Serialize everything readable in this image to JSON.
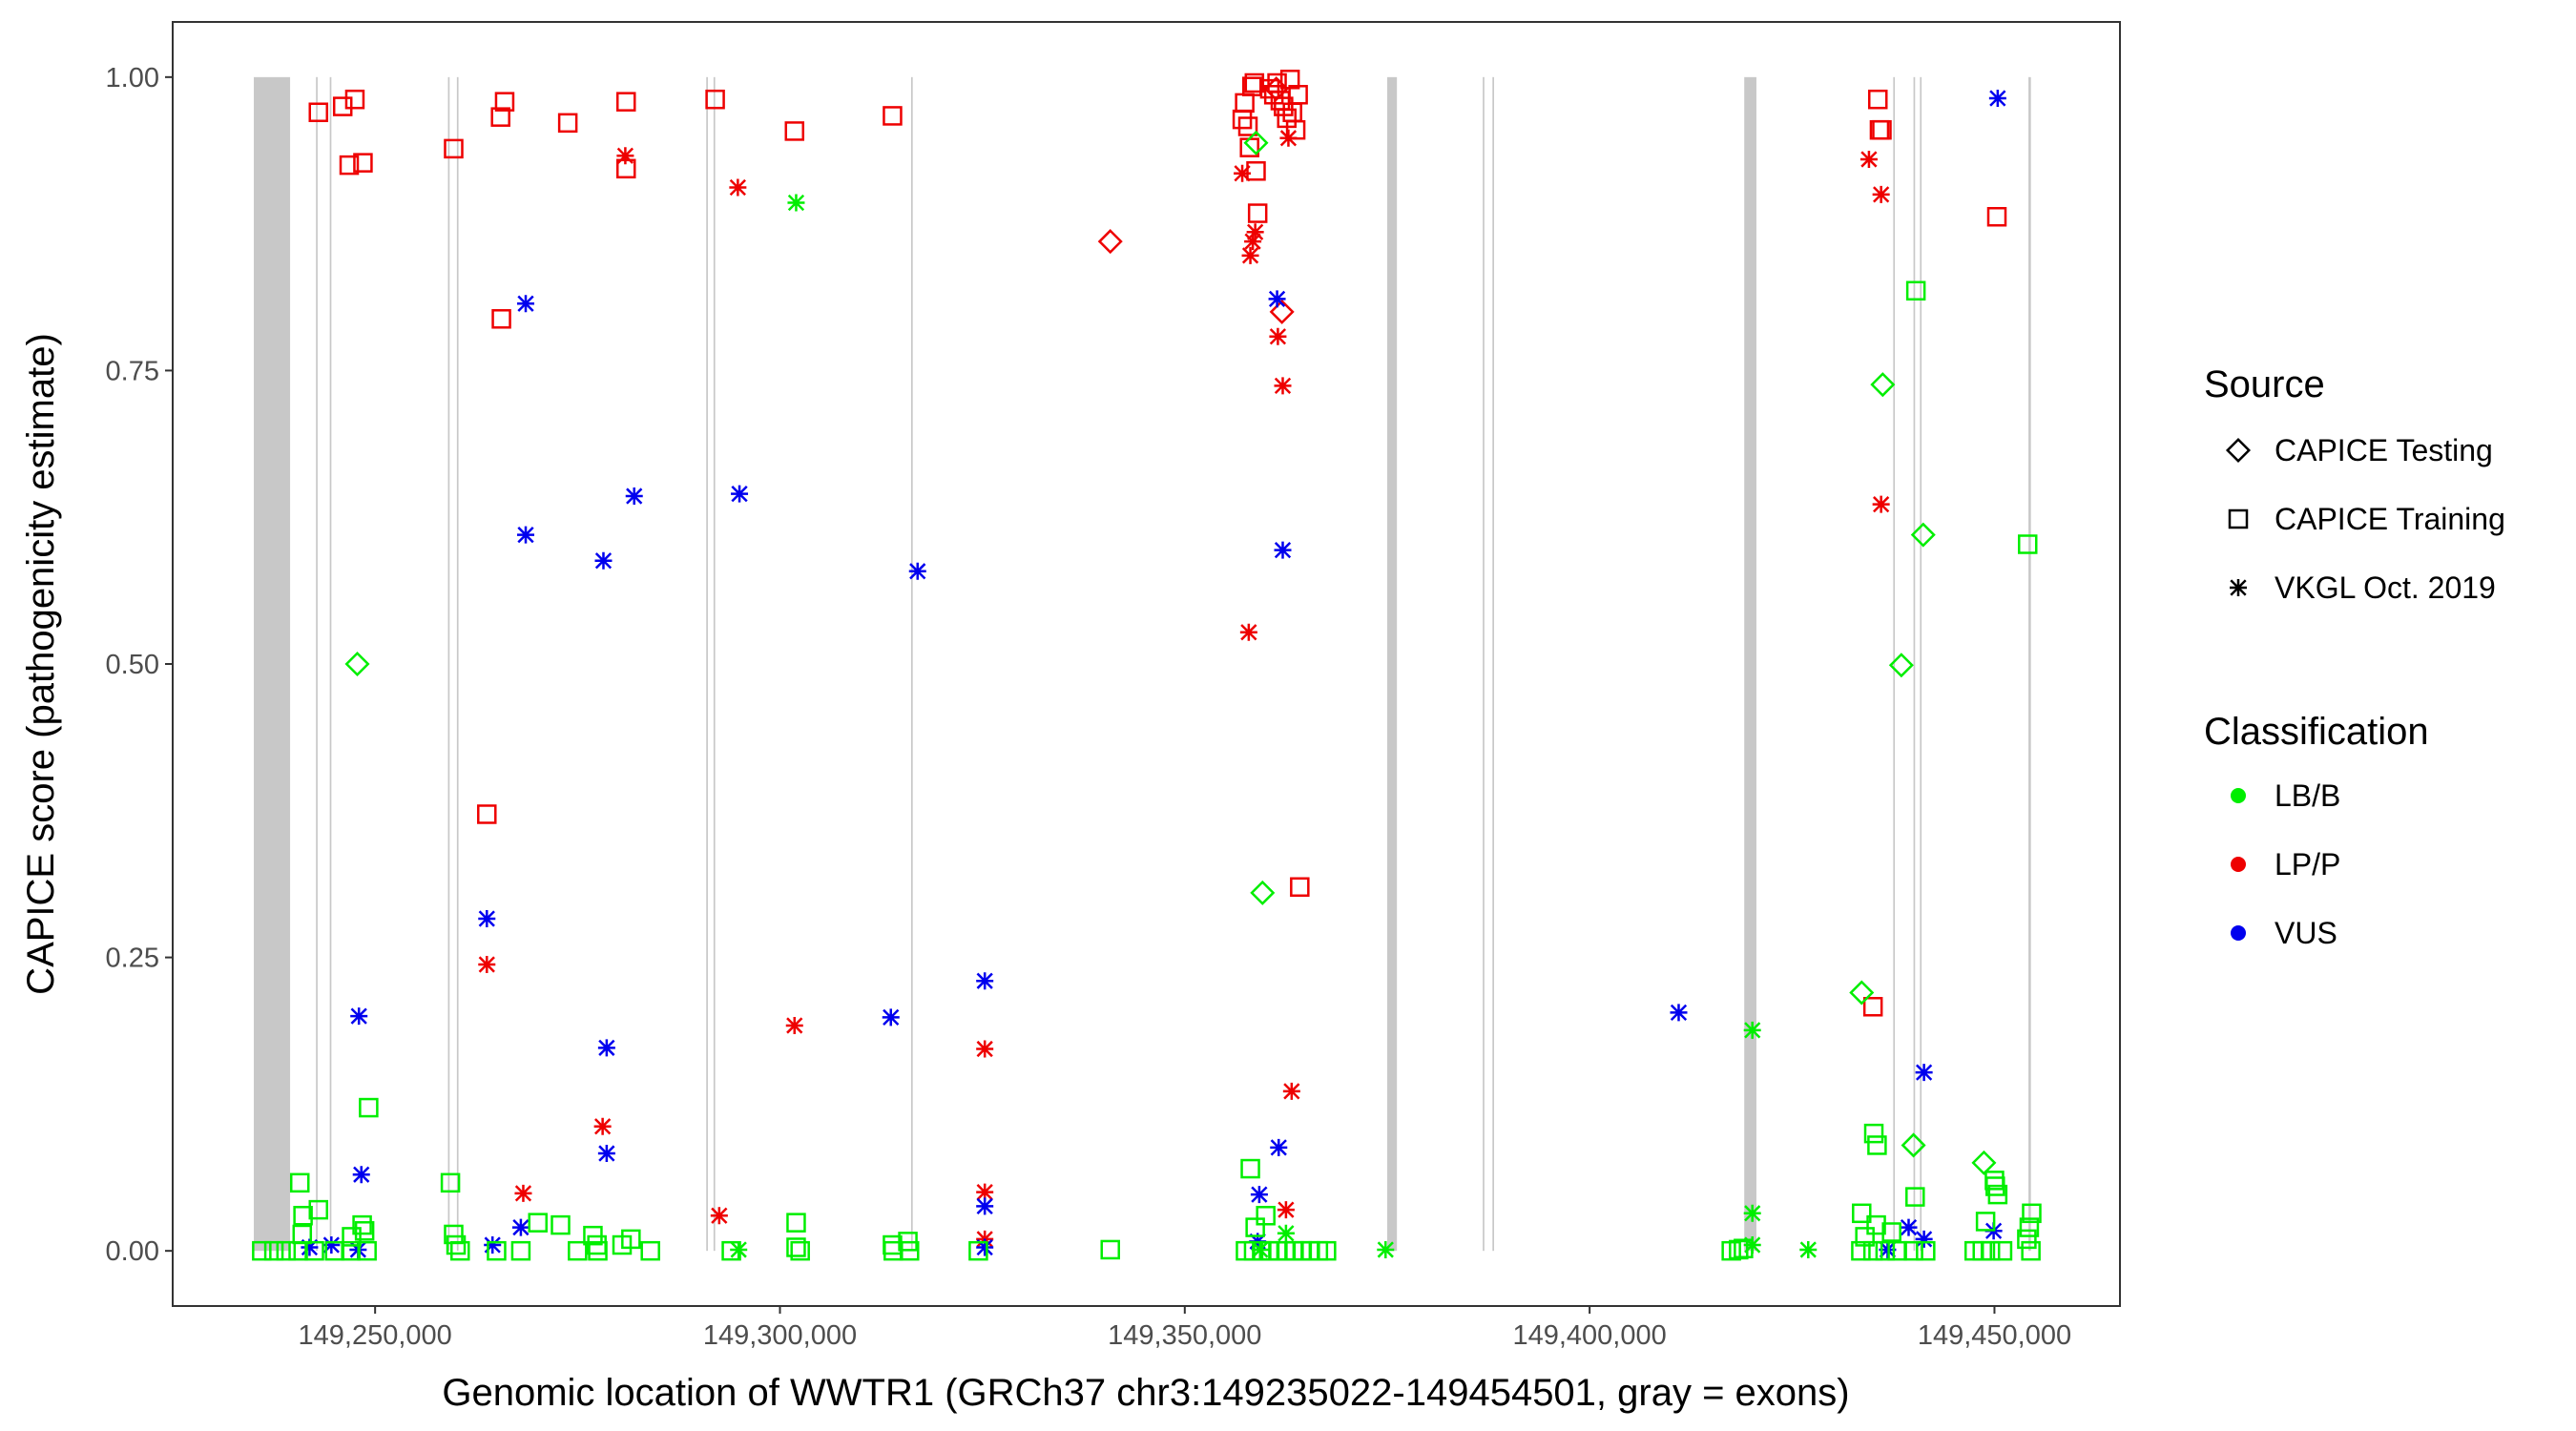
{
  "chart_data": {
    "type": "scatter",
    "title": "",
    "xlabel": "Genomic location of WWTR1 (GRCh37 chr3:149235022-149454501, gray = exons)",
    "ylabel": "CAPICE score (pathogenicity estimate)",
    "xlim": [
      149225000,
      149465500
    ],
    "ylim": [
      -0.047,
      1.047
    ],
    "xticks": [
      149250000,
      149300000,
      149350000,
      149400000,
      149450000
    ],
    "xtick_labels": [
      "149,250,000",
      "149,300,000",
      "149,350,000",
      "149,400,000",
      "149,450,000"
    ],
    "yticks": [
      0,
      0.25,
      0.5,
      0.75,
      1
    ],
    "ytick_labels": [
      "0.00",
      "0.25",
      "0.50",
      "0.75",
      "1.00"
    ],
    "grid": false,
    "exons": [
      [
        149235022,
        149239500
      ],
      [
        149242700,
        149242900
      ],
      [
        149244400,
        149244600
      ],
      [
        149259000,
        149259200
      ],
      [
        149260100,
        149260300
      ],
      [
        149290900,
        149291100
      ],
      [
        149291800,
        149292000
      ],
      [
        149316200,
        149316400
      ],
      [
        149375000,
        149376200
      ],
      [
        149386800,
        149387000
      ],
      [
        149388000,
        149388200
      ],
      [
        149419100,
        149420600
      ],
      [
        149437500,
        149437700
      ],
      [
        149440000,
        149440200
      ],
      [
        149440800,
        149441000
      ],
      [
        149454200,
        149454501
      ]
    ],
    "legend": {
      "position": "right",
      "source_title": "Source",
      "source_items": [
        {
          "label": "CAPICE Testing",
          "shape": "diamond"
        },
        {
          "label": "CAPICE Training",
          "shape": "square"
        },
        {
          "label": "VKGL Oct. 2019",
          "shape": "asterisk"
        }
      ],
      "class_title": "Classification",
      "class_items": [
        {
          "label": "LB/B",
          "color": "#00ee00"
        },
        {
          "label": "LP/P",
          "color": "#ee0000"
        },
        {
          "label": "VUS",
          "color": "#0000ee"
        }
      ]
    },
    "series": [
      {
        "name": "CAPICE Training / LP/P",
        "source": "CAPICE Training",
        "class": "LP/P",
        "shape": "square",
        "color": "#ee0000",
        "points": [
          [
            149243000,
            0.97
          ],
          [
            149246000,
            0.975
          ],
          [
            149247500,
            0.981
          ],
          [
            149246800,
            0.925
          ],
          [
            149248500,
            0.927
          ],
          [
            149259700,
            0.939
          ],
          [
            149265500,
            0.966
          ],
          [
            149266000,
            0.979
          ],
          [
            149273800,
            0.961
          ],
          [
            149281000,
            0.979
          ],
          [
            149281000,
            0.922
          ],
          [
            149292000,
            0.981
          ],
          [
            149301800,
            0.954
          ],
          [
            149313900,
            0.967
          ],
          [
            149263800,
            0.372
          ],
          [
            149265600,
            0.794
          ],
          [
            149357100,
            0.964
          ],
          [
            149357400,
            0.978
          ],
          [
            149357800,
            0.958
          ],
          [
            149358000,
            0.94
          ],
          [
            149358300,
            0.992
          ],
          [
            149358600,
            0.995
          ],
          [
            149358800,
            0.92
          ],
          [
            149359000,
            0.884
          ],
          [
            149360500,
            0.99
          ],
          [
            149361000,
            0.985
          ],
          [
            149361400,
            0.995
          ],
          [
            149361800,
            0.98
          ],
          [
            149362200,
            0.975
          ],
          [
            149362600,
            0.965
          ],
          [
            149363000,
            0.998
          ],
          [
            149363300,
            0.97
          ],
          [
            149363700,
            0.955
          ],
          [
            149364000,
            0.985
          ],
          [
            149364200,
            0.31
          ],
          [
            149435600,
            0.981
          ],
          [
            149435800,
            0.955
          ],
          [
            149436100,
            0.955
          ],
          [
            149435000,
            0.208
          ],
          [
            149450300,
            0.881
          ]
        ]
      },
      {
        "name": "CAPICE Testing / LP/P",
        "source": "CAPICE Testing",
        "class": "LP/P",
        "shape": "diamond",
        "color": "#ee0000",
        "points": [
          [
            149340800,
            0.86
          ],
          [
            149362000,
            0.8
          ],
          [
            149361300,
            0.99
          ]
        ]
      },
      {
        "name": "VKGL Oct. 2019 / LP/P",
        "source": "VKGL Oct. 2019",
        "class": "LP/P",
        "shape": "asterisk",
        "color": "#ee0000",
        "points": [
          [
            149280900,
            0.933
          ],
          [
            149294800,
            0.906
          ],
          [
            149263800,
            0.244
          ],
          [
            149268300,
            0.049
          ],
          [
            149278100,
            0.106
          ],
          [
            149292500,
            0.03
          ],
          [
            149301800,
            0.192
          ],
          [
            149325300,
            0.172
          ],
          [
            149325300,
            0.05
          ],
          [
            149325300,
            0.01
          ],
          [
            149357100,
            0.918
          ],
          [
            149358100,
            0.848
          ],
          [
            149358400,
            0.86
          ],
          [
            149358700,
            0.868
          ],
          [
            149357900,
            0.527
          ],
          [
            149361500,
            0.779
          ],
          [
            149362100,
            0.737
          ],
          [
            149362800,
            0.948
          ],
          [
            149363200,
            0.136
          ],
          [
            149362500,
            0.035
          ],
          [
            149434500,
            0.93
          ],
          [
            149436000,
            0.9
          ],
          [
            149436000,
            0.636
          ]
        ]
      },
      {
        "name": "VKGL Oct. 2019 / VUS",
        "source": "VKGL Oct. 2019",
        "class": "VUS",
        "shape": "asterisk",
        "color": "#0000ee",
        "points": [
          [
            149268600,
            0.807
          ],
          [
            149268600,
            0.61
          ],
          [
            149278200,
            0.588
          ],
          [
            149282000,
            0.643
          ],
          [
            149295000,
            0.645
          ],
          [
            149317000,
            0.579
          ],
          [
            149313700,
            0.199
          ],
          [
            149263800,
            0.283
          ],
          [
            149278600,
            0.173
          ],
          [
            149278600,
            0.083
          ],
          [
            149248000,
            0.2
          ],
          [
            149248300,
            0.065
          ],
          [
            149241900,
            0.003
          ],
          [
            149244600,
            0.005
          ],
          [
            149247900,
            0.001
          ],
          [
            149264500,
            0.005
          ],
          [
            149268000,
            0.02
          ],
          [
            149325300,
            0.23
          ],
          [
            149325300,
            0.038
          ],
          [
            149325300,
            0.003
          ],
          [
            149361400,
            0.811
          ],
          [
            149362100,
            0.597
          ],
          [
            149361600,
            0.088
          ],
          [
            149359200,
            0.048
          ],
          [
            149359000,
            0.008
          ],
          [
            149411000,
            0.203
          ],
          [
            149441300,
            0.152
          ],
          [
            149450400,
            0.982
          ],
          [
            149436800,
            0.001
          ],
          [
            149439400,
            0.02
          ],
          [
            149441300,
            0.01
          ],
          [
            149449900,
            0.017
          ]
        ]
      },
      {
        "name": "CAPICE Training / LB/B",
        "source": "CAPICE Training",
        "class": "LB/B",
        "shape": "square",
        "color": "#00ee00",
        "points": [
          [
            149240700,
            0.058
          ],
          [
            149241100,
            0.03
          ],
          [
            149243000,
            0.035
          ],
          [
            149241000,
            0.014
          ],
          [
            149247100,
            0.012
          ],
          [
            149248400,
            0.022
          ],
          [
            149248700,
            0.017
          ],
          [
            149249200,
            0.122
          ],
          [
            149259300,
            0.058
          ],
          [
            149259700,
            0.014
          ],
          [
            149260000,
            0.005
          ],
          [
            149270100,
            0.024
          ],
          [
            149272900,
            0.022
          ],
          [
            149276900,
            0.013
          ],
          [
            149277400,
            0.005
          ],
          [
            149280500,
            0.005
          ],
          [
            149281600,
            0.01
          ],
          [
            149302000,
            0.024
          ],
          [
            149302000,
            0.003
          ],
          [
            149313900,
            0.005
          ],
          [
            149315800,
            0.008
          ],
          [
            149340800,
            0.001
          ],
          [
            149358100,
            0.07
          ],
          [
            149358700,
            0.02
          ],
          [
            149360000,
            0.03
          ],
          [
            149440300,
            0.818
          ],
          [
            149454100,
            0.602
          ],
          [
            149435100,
            0.1
          ],
          [
            149435500,
            0.09
          ],
          [
            149440200,
            0.046
          ],
          [
            149433600,
            0.032
          ],
          [
            149434000,
            0.012
          ],
          [
            149435400,
            0.022
          ],
          [
            149437300,
            0.016
          ],
          [
            149448900,
            0.025
          ],
          [
            149450100,
            0.055
          ],
          [
            149450400,
            0.048
          ],
          [
            149450000,
            0.06
          ],
          [
            149454600,
            0.032
          ],
          [
            149454300,
            0.02
          ],
          [
            149454000,
            0.01
          ],
          [
            149418400,
            0.001
          ],
          [
            149419000,
            0.002
          ]
        ]
      },
      {
        "name": "CAPICE Testing / LB/B",
        "source": "CAPICE Testing",
        "class": "LB/B",
        "shape": "diamond",
        "color": "#00ee00",
        "points": [
          [
            149247800,
            0.5
          ],
          [
            149358800,
            0.944
          ],
          [
            149359600,
            0.305
          ],
          [
            149436200,
            0.738
          ],
          [
            149441200,
            0.61
          ],
          [
            149438500,
            0.499
          ],
          [
            149433600,
            0.22
          ],
          [
            149440000,
            0.09
          ],
          [
            149448700,
            0.075
          ]
        ]
      },
      {
        "name": "VKGL Oct. 2019 / LB/B",
        "source": "VKGL Oct. 2019",
        "class": "LB/B",
        "shape": "asterisk",
        "color": "#00ee00",
        "points": [
          [
            149302000,
            0.893
          ],
          [
            149420100,
            0.188
          ],
          [
            149420100,
            0.032
          ],
          [
            149420100,
            0.005
          ],
          [
            149427000,
            0.001
          ],
          [
            149374800,
            0.001
          ],
          [
            149294900,
            0.001
          ],
          [
            149359300,
            0.001
          ],
          [
            149362500,
            0.015
          ]
        ]
      },
      {
        "name": "LB/B cluster",
        "source": "mixed",
        "class": "LB/B",
        "shape": "square",
        "color": "#00ee00",
        "points": [
          [
            149236000,
            0.0
          ],
          [
            149237500,
            0.0
          ],
          [
            149239000,
            0.0
          ],
          [
            149240500,
            0.0
          ],
          [
            149242500,
            0.0
          ],
          [
            149245000,
            0.0
          ],
          [
            149247000,
            0.0
          ],
          [
            149249000,
            0.0
          ],
          [
            149260500,
            0.0
          ],
          [
            149265000,
            0.0
          ],
          [
            149268000,
            0.0
          ],
          [
            149275000,
            0.0
          ],
          [
            149277500,
            0.0
          ],
          [
            149284000,
            0.0
          ],
          [
            149294000,
            0.0
          ],
          [
            149302500,
            0.0
          ],
          [
            149314000,
            0.0
          ],
          [
            149316000,
            0.0
          ],
          [
            149324500,
            0.0
          ],
          [
            149357500,
            0.0
          ],
          [
            149358500,
            0.0
          ],
          [
            149359500,
            0.0
          ],
          [
            149360500,
            0.0
          ],
          [
            149361500,
            0.0
          ],
          [
            149362500,
            0.0
          ],
          [
            149363500,
            0.0
          ],
          [
            149364500,
            0.0
          ],
          [
            149365500,
            0.0
          ],
          [
            149366500,
            0.0
          ],
          [
            149367500,
            0.0
          ],
          [
            149417500,
            0.0
          ],
          [
            149433500,
            0.0
          ],
          [
            149435000,
            0.0
          ],
          [
            149436500,
            0.0
          ],
          [
            149438000,
            0.0
          ],
          [
            149440000,
            0.0
          ],
          [
            149441500,
            0.0
          ],
          [
            149447500,
            0.0
          ],
          [
            149448500,
            0.0
          ],
          [
            149449500,
            0.0
          ],
          [
            149451000,
            0.0
          ],
          [
            149454500,
            0.0
          ]
        ]
      }
    ]
  }
}
